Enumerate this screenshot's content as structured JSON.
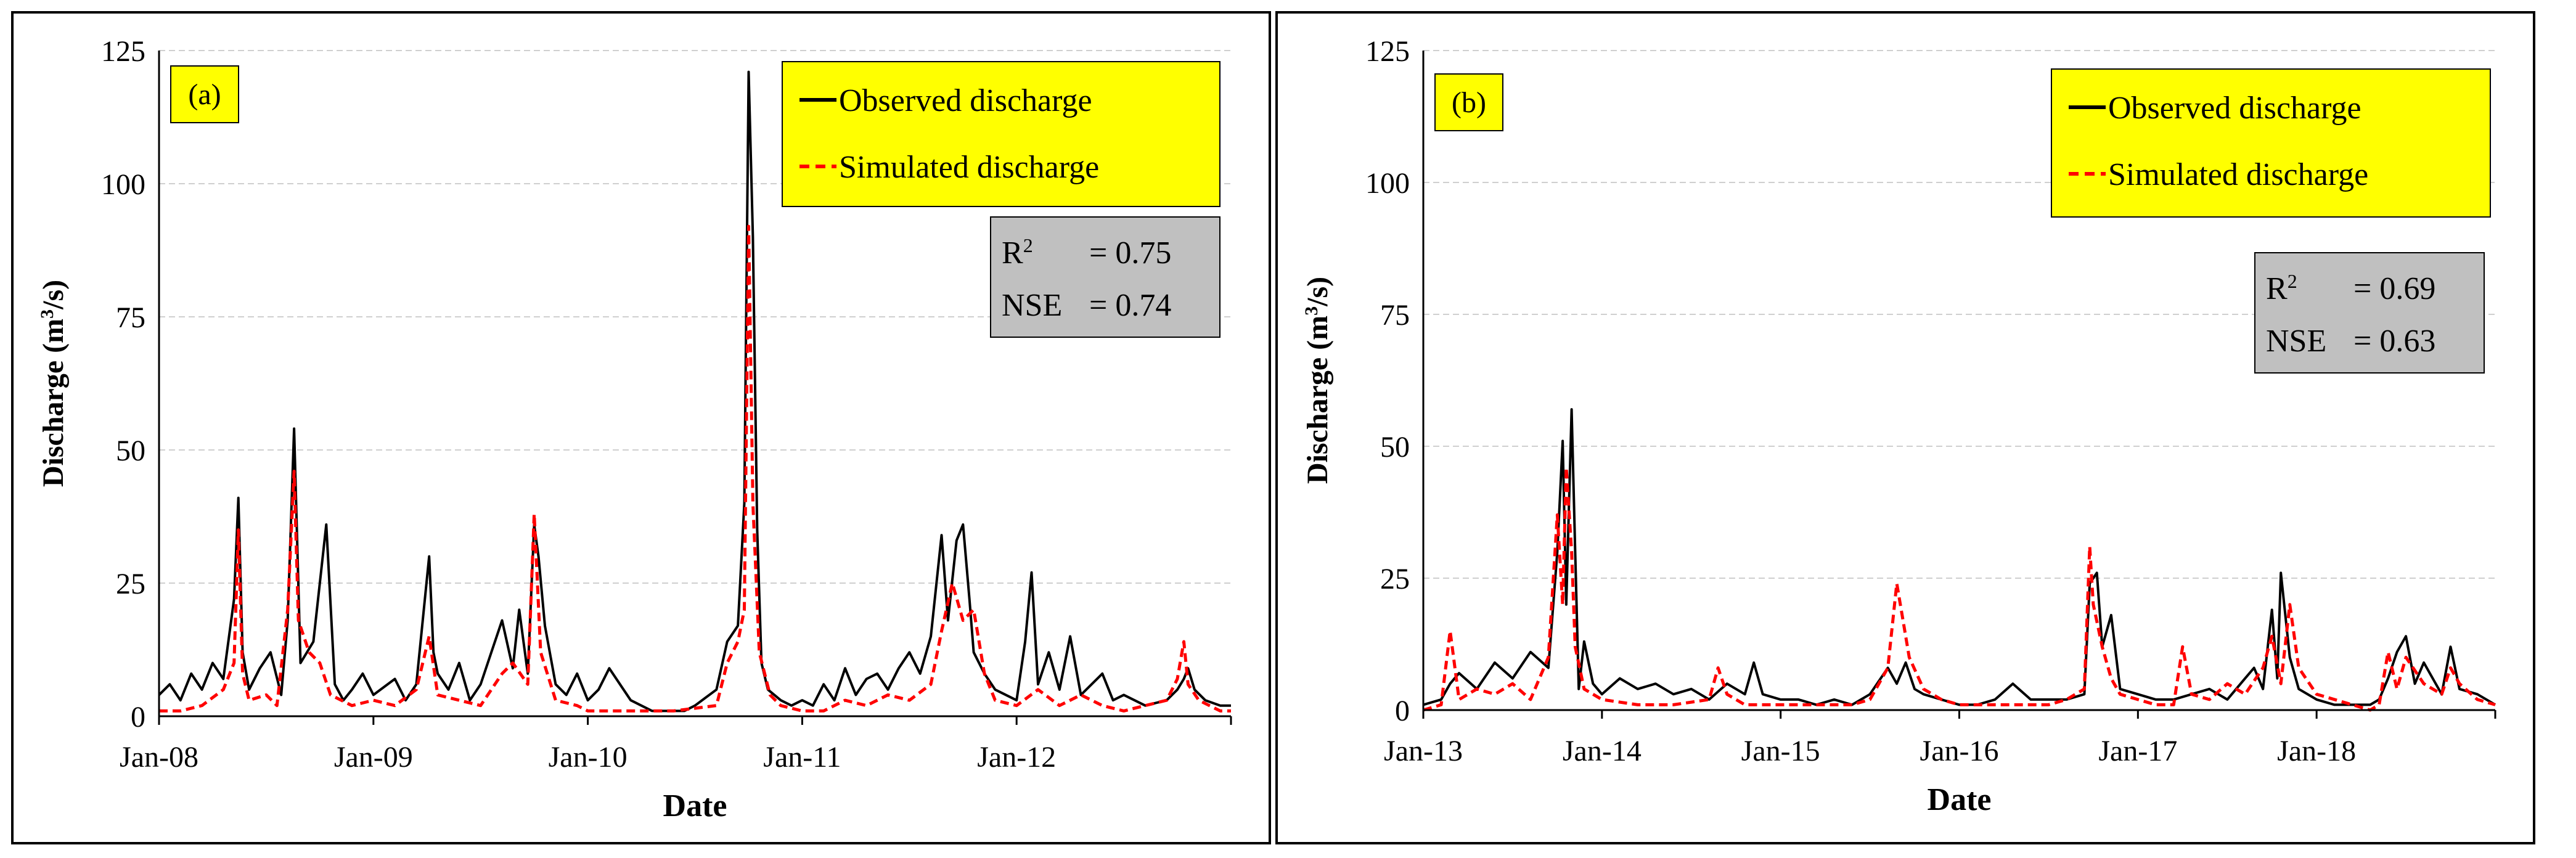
{
  "chart_data": [
    {
      "type": "line",
      "panel_label": "(a)",
      "xlabel": "Date",
      "ylabel": "Discharge (m³/s)",
      "ylabel_parts": {
        "before": "Discharge (m",
        "sup": "3",
        "after": "/s)"
      },
      "ylim": [
        0,
        125
      ],
      "yticks": [
        "0",
        "25",
        "50",
        "75",
        "100",
        "125"
      ],
      "x_ticks": [
        "Jan-08",
        "Jan-09",
        "Jan-10",
        "Jan-11",
        "Jan-12"
      ],
      "x_range_years": [
        2008.0,
        2013.0
      ],
      "legend": [
        {
          "label": "Observed discharge",
          "color": "#000000",
          "style": "solid"
        },
        {
          "label": "Simulated discharge",
          "color": "#ff0000",
          "style": "dashed"
        }
      ],
      "stats": {
        "r2_label": "R",
        "r2_sup": "2",
        "r2_value": "= 0.75",
        "nse_label": "NSE",
        "nse_value": "= 0.74"
      },
      "series": [
        {
          "name": "Observed discharge",
          "x": [
            2008.0,
            2008.05,
            2008.1,
            2008.15,
            2008.2,
            2008.25,
            2008.3,
            2008.35,
            2008.37,
            2008.39,
            2008.42,
            2008.47,
            2008.52,
            2008.57,
            2008.6,
            2008.63,
            2008.66,
            2008.72,
            2008.78,
            2008.82,
            2008.86,
            2008.9,
            2008.95,
            2009.0,
            2009.1,
            2009.15,
            2009.2,
            2009.26,
            2009.28,
            2009.3,
            2009.35,
            2009.4,
            2009.45,
            2009.5,
            2009.55,
            2009.6,
            2009.65,
            2009.68,
            2009.72,
            2009.75,
            2009.77,
            2009.8,
            2009.85,
            2009.9,
            2009.95,
            2010.0,
            2010.05,
            2010.1,
            2010.2,
            2010.3,
            2010.4,
            2010.45,
            2010.5,
            2010.6,
            2010.65,
            2010.7,
            2010.73,
            2010.75,
            2010.77,
            2010.79,
            2010.81,
            2010.84,
            2010.9,
            2010.95,
            2011.0,
            2011.05,
            2011.1,
            2011.15,
            2011.2,
            2011.25,
            2011.3,
            2011.35,
            2011.4,
            2011.45,
            2011.5,
            2011.55,
            2011.6,
            2011.65,
            2011.68,
            2011.72,
            2011.75,
            2011.78,
            2011.8,
            2011.85,
            2011.9,
            2011.95,
            2012.0,
            2012.04,
            2012.07,
            2012.1,
            2012.15,
            2012.2,
            2012.25,
            2012.3,
            2012.35,
            2012.4,
            2012.45,
            2012.5,
            2012.6,
            2012.7,
            2012.75,
            2012.78,
            2012.8,
            2012.83,
            2012.88,
            2012.95,
            2013.0
          ],
          "values": [
            4,
            6,
            3,
            8,
            5,
            10,
            7,
            22,
            41,
            12,
            5,
            9,
            12,
            4,
            18,
            54,
            10,
            14,
            36,
            6,
            3,
            5,
            8,
            4,
            7,
            3,
            6,
            30,
            12,
            8,
            5,
            10,
            3,
            6,
            12,
            18,
            9,
            20,
            8,
            36,
            30,
            17,
            6,
            4,
            8,
            3,
            5,
            9,
            3,
            1,
            1,
            1,
            2,
            5,
            14,
            17,
            40,
            121,
            90,
            35,
            10,
            5,
            3,
            2,
            3,
            2,
            6,
            3,
            9,
            4,
            7,
            8,
            5,
            9,
            12,
            8,
            15,
            34,
            18,
            33,
            36,
            22,
            12,
            8,
            5,
            4,
            3,
            14,
            27,
            6,
            12,
            5,
            15,
            4,
            6,
            8,
            3,
            4,
            2,
            3,
            5,
            7,
            9,
            5,
            3,
            2,
            2
          ]
        },
        {
          "name": "Simulated discharge",
          "x": [
            2008.0,
            2008.1,
            2008.2,
            2008.3,
            2008.35,
            2008.37,
            2008.39,
            2008.42,
            2008.5,
            2008.55,
            2008.6,
            2008.63,
            2008.65,
            2008.7,
            2008.75,
            2008.8,
            2008.9,
            2009.0,
            2009.1,
            2009.2,
            2009.26,
            2009.3,
            2009.4,
            2009.5,
            2009.6,
            2009.65,
            2009.72,
            2009.75,
            2009.78,
            2009.85,
            2009.95,
            2010.0,
            2010.1,
            2010.2,
            2010.4,
            2010.6,
            2010.65,
            2010.7,
            2010.73,
            2010.75,
            2010.77,
            2010.8,
            2010.85,
            2010.9,
            2011.0,
            2011.1,
            2011.2,
            2011.3,
            2011.4,
            2011.5,
            2011.6,
            2011.65,
            2011.7,
            2011.75,
            2011.8,
            2011.85,
            2011.9,
            2012.0,
            2012.1,
            2012.2,
            2012.3,
            2012.4,
            2012.5,
            2012.6,
            2012.7,
            2012.75,
            2012.78,
            2012.8,
            2012.85,
            2012.95,
            2013.0
          ],
          "values": [
            1,
            1,
            2,
            5,
            10,
            35,
            8,
            3,
            4,
            2,
            20,
            46,
            18,
            12,
            10,
            4,
            2,
            3,
            2,
            5,
            15,
            4,
            3,
            2,
            8,
            10,
            6,
            38,
            12,
            3,
            2,
            1,
            1,
            1,
            1,
            2,
            10,
            14,
            20,
            92,
            40,
            12,
            4,
            2,
            1,
            1,
            3,
            2,
            4,
            3,
            6,
            16,
            25,
            18,
            20,
            8,
            3,
            2,
            5,
            2,
            4,
            2,
            1,
            2,
            3,
            7,
            14,
            6,
            3,
            1,
            1
          ]
        }
      ]
    },
    {
      "type": "line",
      "panel_label": "(b)",
      "xlabel": "Date",
      "ylabel": "Discharge (m³/s)",
      "ylabel_parts": {
        "before": "Discharge (m",
        "sup": "3",
        "after": "/s)"
      },
      "ylim": [
        0,
        125
      ],
      "yticks": [
        "0",
        "25",
        "50",
        "75",
        "100",
        "125"
      ],
      "x_ticks": [
        "Jan-13",
        "Jan-14",
        "Jan-15",
        "Jan-16",
        "Jan-17",
        "Jan-18"
      ],
      "x_range_years": [
        2013.0,
        2019.0
      ],
      "legend": [
        {
          "label": "Observed discharge",
          "color": "#000000",
          "style": "solid"
        },
        {
          "label": "Simulated discharge",
          "color": "#ff0000",
          "style": "dashed"
        }
      ],
      "stats": {
        "r2_label": "R",
        "r2_sup": "2",
        "r2_value": "= 0.69",
        "nse_label": "NSE",
        "nse_value": "= 0.63"
      },
      "series": [
        {
          "name": "Observed discharge",
          "x": [
            2013.0,
            2013.1,
            2013.15,
            2013.2,
            2013.3,
            2013.4,
            2013.5,
            2013.6,
            2013.7,
            2013.75,
            2013.78,
            2013.8,
            2013.83,
            2013.85,
            2013.87,
            2013.9,
            2013.95,
            2014.0,
            2014.1,
            2014.2,
            2014.3,
            2014.4,
            2014.5,
            2014.6,
            2014.7,
            2014.8,
            2014.85,
            2014.9,
            2015.0,
            2015.1,
            2015.2,
            2015.3,
            2015.4,
            2015.5,
            2015.6,
            2015.65,
            2015.7,
            2015.75,
            2015.8,
            2015.9,
            2016.0,
            2016.1,
            2016.2,
            2016.3,
            2016.4,
            2016.5,
            2016.6,
            2016.7,
            2016.73,
            2016.77,
            2016.8,
            2016.85,
            2016.9,
            2017.0,
            2017.1,
            2017.2,
            2017.3,
            2017.4,
            2017.5,
            2017.6,
            2017.65,
            2017.7,
            2017.75,
            2017.78,
            2017.8,
            2017.85,
            2017.9,
            2018.0,
            2018.1,
            2018.2,
            2018.3,
            2018.35,
            2018.4,
            2018.45,
            2018.5,
            2018.55,
            2018.6,
            2018.7,
            2018.75,
            2018.8,
            2018.9,
            2019.0
          ],
          "values": [
            1,
            2,
            5,
            7,
            4,
            9,
            6,
            11,
            8,
            30,
            51,
            20,
            57,
            30,
            4,
            13,
            5,
            3,
            6,
            4,
            5,
            3,
            4,
            2,
            5,
            3,
            9,
            3,
            2,
            2,
            1,
            2,
            1,
            3,
            8,
            5,
            9,
            4,
            3,
            2,
            1,
            1,
            2,
            5,
            2,
            2,
            2,
            3,
            24,
            26,
            12,
            18,
            4,
            3,
            2,
            2,
            3,
            4,
            2,
            6,
            8,
            4,
            19,
            6,
            26,
            10,
            4,
            2,
            1,
            1,
            1,
            2,
            6,
            11,
            14,
            5,
            9,
            3,
            12,
            4,
            3,
            1
          ]
        },
        {
          "name": "Simulated discharge",
          "x": [
            2013.0,
            2013.1,
            2013.15,
            2013.2,
            2013.3,
            2013.4,
            2013.5,
            2013.6,
            2013.7,
            2013.75,
            2013.78,
            2013.8,
            2013.83,
            2013.85,
            2013.9,
            2014.0,
            2014.2,
            2014.4,
            2014.6,
            2014.65,
            2014.7,
            2014.8,
            2015.0,
            2015.2,
            2015.4,
            2015.5,
            2015.6,
            2015.65,
            2015.68,
            2015.72,
            2015.8,
            2015.9,
            2016.0,
            2016.2,
            2016.4,
            2016.5,
            2016.6,
            2016.7,
            2016.73,
            2016.75,
            2016.8,
            2016.85,
            2016.9,
            2017.0,
            2017.1,
            2017.2,
            2017.25,
            2017.3,
            2017.4,
            2017.5,
            2017.6,
            2017.7,
            2017.75,
            2017.8,
            2017.85,
            2017.9,
            2018.0,
            2018.2,
            2018.3,
            2018.35,
            2018.4,
            2018.45,
            2018.5,
            2018.6,
            2018.7,
            2018.75,
            2018.8,
            2018.9,
            2019.0
          ],
          "values": [
            0,
            1,
            15,
            2,
            4,
            3,
            5,
            2,
            10,
            37,
            20,
            46,
            30,
            12,
            4,
            2,
            1,
            1,
            2,
            8,
            3,
            1,
            1,
            1,
            1,
            2,
            8,
            24,
            18,
            10,
            4,
            2,
            1,
            1,
            1,
            1,
            2,
            4,
            31,
            20,
            12,
            6,
            3,
            2,
            1,
            1,
            12,
            3,
            2,
            5,
            3,
            8,
            14,
            5,
            20,
            8,
            3,
            1,
            0,
            1,
            11,
            4,
            10,
            5,
            3,
            8,
            5,
            2,
            1
          ]
        }
      ]
    }
  ]
}
